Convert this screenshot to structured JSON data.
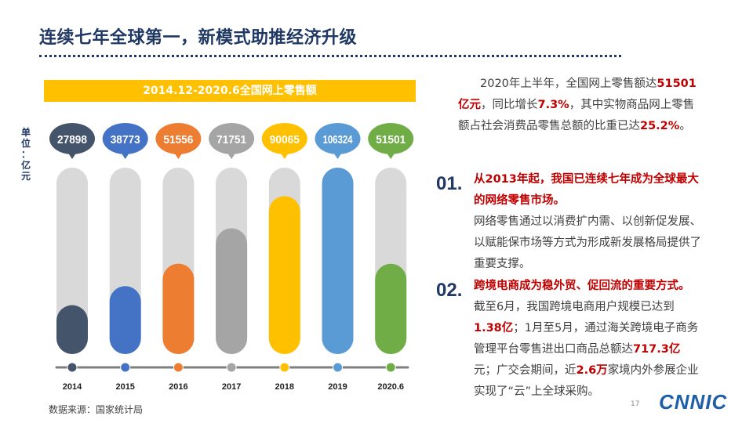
{
  "title": "连续七年全球第一，新模式助推经济升级",
  "chart_banner": "2014.12-2020.6全国网上零售额",
  "unit_label": [
    "单",
    "位",
    "：",
    "亿",
    "元"
  ],
  "chart_data": {
    "type": "bar",
    "title": "2014.12-2020.6全国网上零售额",
    "ylabel": "单位：亿元",
    "ylim": [
      0,
      106324
    ],
    "categories": [
      "2014",
      "2015",
      "2016",
      "2017",
      "2018",
      "2019",
      "2020.6"
    ],
    "values": [
      27898,
      38773,
      51556,
      71751,
      90065,
      106324,
      51501
    ],
    "colors": [
      "#44546a",
      "#4472c4",
      "#ed7d31",
      "#a5a5a5",
      "#ffc000",
      "#5b9bd5",
      "#70ad47"
    ],
    "track_color": "#d9d9d9"
  },
  "source": "数据来源：国家统计局",
  "intro": {
    "t1": "2020年上半年，全国网上零售额达",
    "h1": "51501亿元",
    "t2": "，同比增长",
    "h2": "7.3%",
    "t3": "，其中实物商品网上零售额占社会消费品零售总额的比重已达",
    "h3": "25.2%",
    "t4": "。"
  },
  "points": [
    {
      "num": "01.",
      "title": "从2013年起，我国已连续七年成为全球最大的网络零售市场。",
      "body": "网络零售通过以消费扩内需、以创新促发展、以赋能保市场等方式为形成新发展格局提供了重要支撑。"
    },
    {
      "num": "02.",
      "title": "跨境电商成为稳外贸、促回流的重要方式。",
      "b1": "截至6月，我国跨境电商用户规模已达到",
      "h1": "1.38亿",
      "b2": "；1月至5月，通过海关跨境电子商务管理平台零售进出口商品总额达",
      "h2": "717.3亿",
      "b3": "元；广交会期间，近",
      "h3": "2.6万",
      "b4": "家境内外参展企业实现了“云”上全球采购。"
    }
  ],
  "page_number": "17",
  "logo": "CNNIC"
}
